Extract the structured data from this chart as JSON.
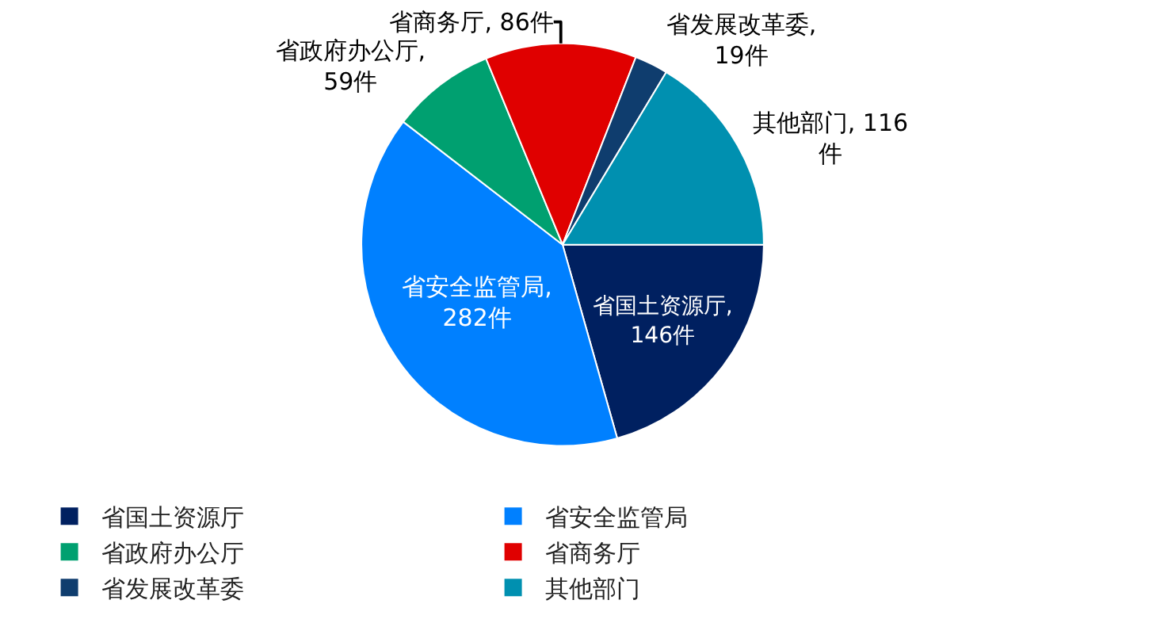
{
  "chart_data": {
    "type": "pie",
    "categories": [
      "省国土资源厅",
      "省安全监管局",
      "省政府办公厅",
      "省商务厅",
      "省发展改革委",
      "其他部门"
    ],
    "values": [
      146,
      282,
      59,
      86,
      19,
      116
    ],
    "colors": [
      "#002060",
      "#0080ff",
      "#00a070",
      "#e00000",
      "#0f3d6e",
      "#0090b0"
    ],
    "value_labels": [
      "省国土资源厅,\n146件",
      "省安全监管局,\n282件",
      "省政府办公厅,\n59件",
      "省商务厅, 86件",
      "省发展改革委,\n19件",
      "其他部门, 116\n件"
    ],
    "legend": "bottom"
  }
}
